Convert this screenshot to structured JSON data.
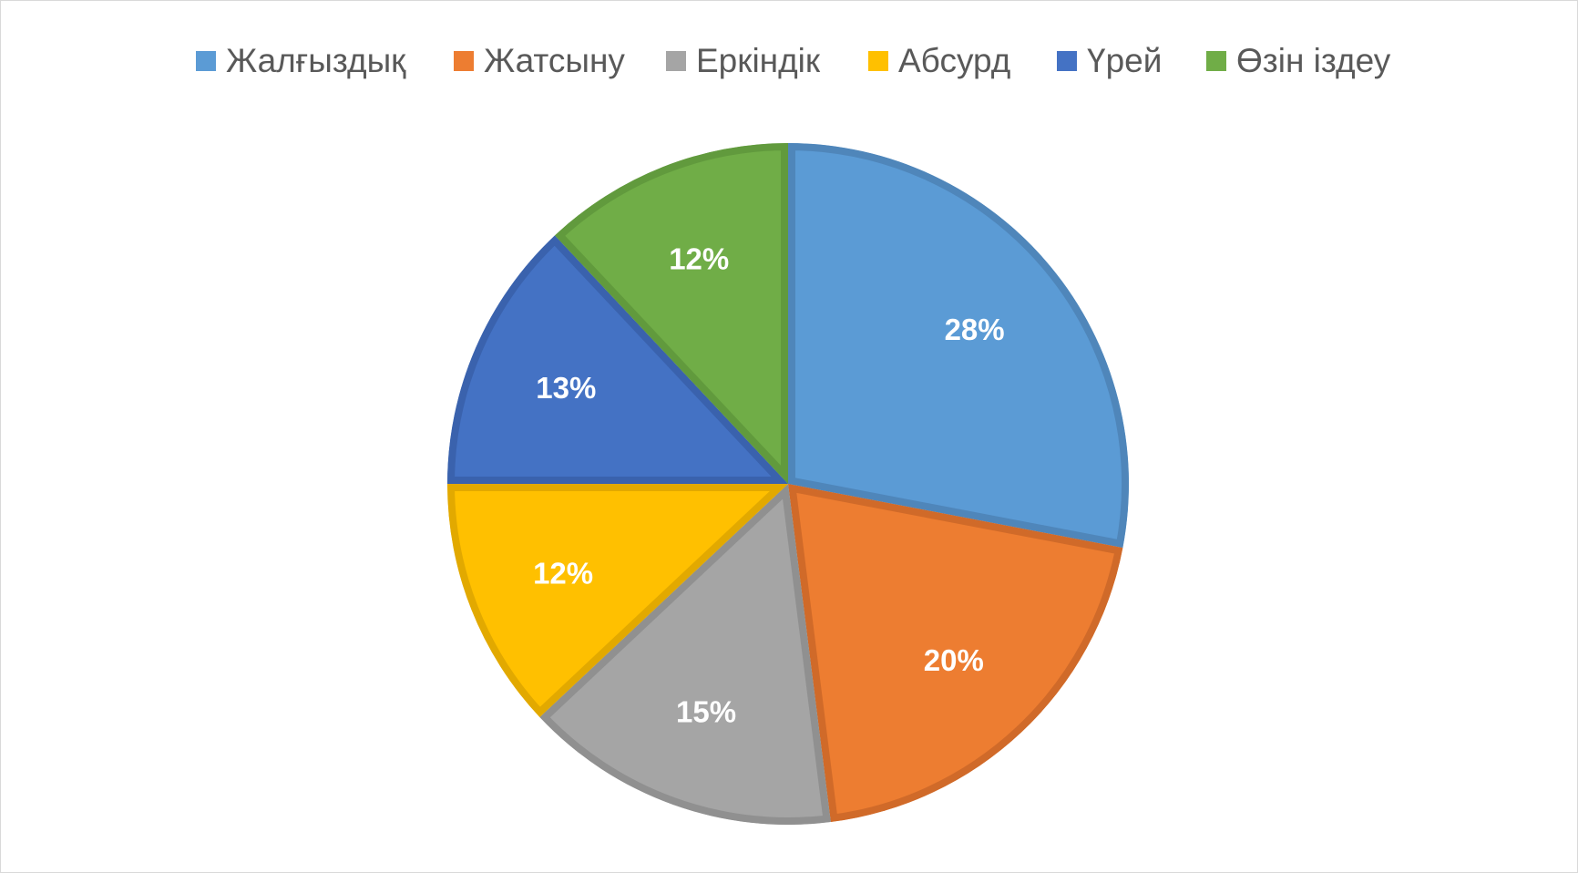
{
  "chart_data": {
    "type": "pie",
    "title": "",
    "legend_position": "top",
    "start_angle_deg": 0,
    "direction": "clockwise",
    "categories": [
      "Жалғыздық",
      "Жатсыну",
      "Еркіндік",
      "Абсурд",
      "Үрей",
      "Өзін іздеу"
    ],
    "values": [
      28,
      20,
      15,
      12,
      13,
      12
    ],
    "labels": [
      "28%",
      "20%",
      "15%",
      "12%",
      "13%",
      "12%"
    ],
    "colors": [
      "#5B9BD5",
      "#ED7D31",
      "#A5A5A5",
      "#FFC000",
      "#4472C4",
      "#70AD47"
    ],
    "border_colors": [
      "#4F86BA",
      "#D06A29",
      "#909090",
      "#E2A900",
      "#3A62AD",
      "#619A3D"
    ]
  }
}
